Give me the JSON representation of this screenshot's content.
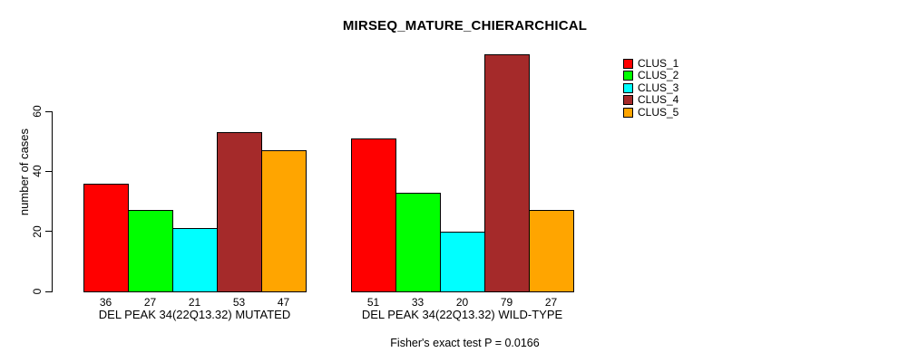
{
  "chart_data": {
    "type": "bar",
    "title": "MIRSEQ_MATURE_CHIERARCHICAL",
    "ylabel": "number of cases",
    "xlabel": "",
    "yticks": [
      0,
      20,
      40,
      60
    ],
    "ylim": [
      0,
      79
    ],
    "grid": false,
    "legend_position": "right",
    "footer": "Fisher's exact test P = 0.0166",
    "series": [
      {
        "name": "CLUS_1",
        "color": "#FF0000"
      },
      {
        "name": "CLUS_2",
        "color": "#00FF00"
      },
      {
        "name": "CLUS_3",
        "color": "#00FFFF"
      },
      {
        "name": "CLUS_4",
        "color": "#A52A2A"
      },
      {
        "name": "CLUS_5",
        "color": "#FFA500"
      }
    ],
    "groups": [
      {
        "label": "DEL PEAK 34(22Q13.32) MUTATED",
        "values": [
          36,
          27,
          21,
          53,
          47
        ]
      },
      {
        "label": "DEL PEAK 34(22Q13.32) WILD-TYPE",
        "values": [
          51,
          33,
          20,
          79,
          27
        ]
      }
    ]
  }
}
